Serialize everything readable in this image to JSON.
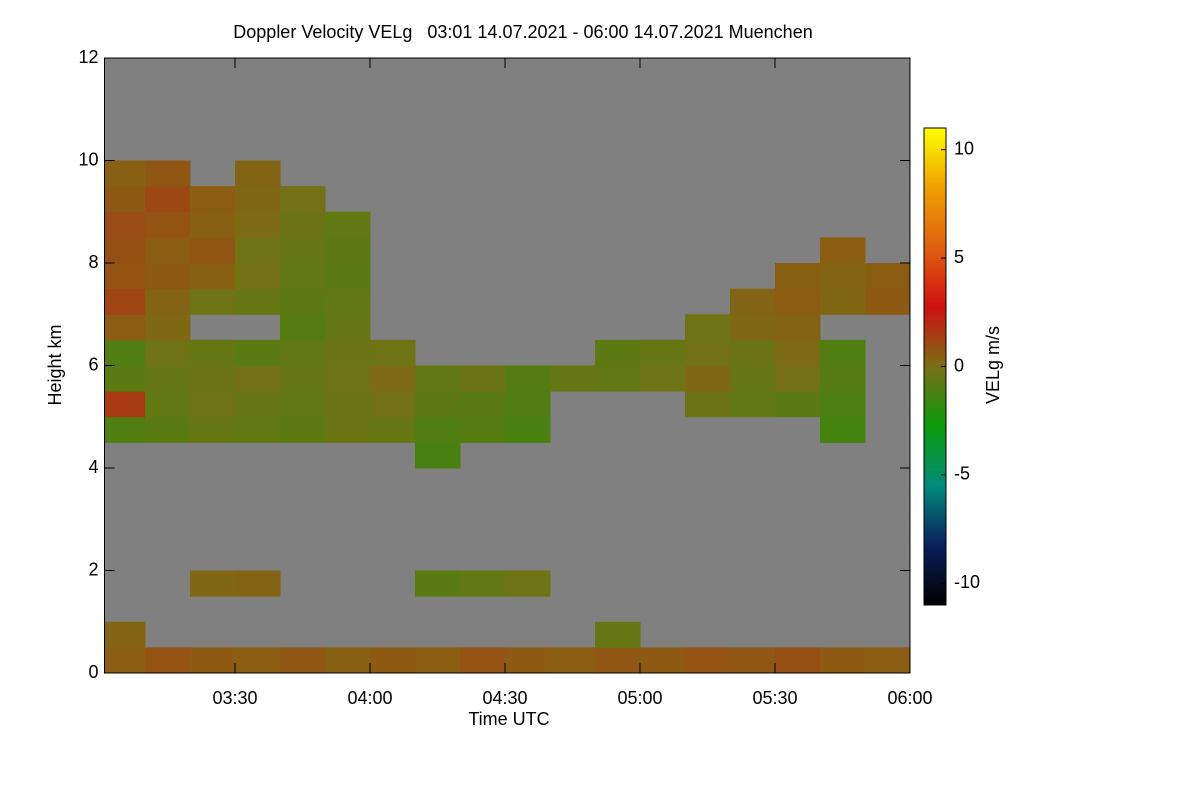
{
  "chart_data": {
    "type": "heatmap",
    "title": "Doppler Velocity VELg   03:01 14.07.2021 - 06:00 14.07.2021 Muenchen",
    "x_label": "Time UTC",
    "y_label": "Height km",
    "colorbar_label": "VELg m/s",
    "xlim": [
      "03:01",
      "06:00"
    ],
    "xticks": [
      "03:30",
      "04:00",
      "04:30",
      "05:00",
      "05:30",
      "06:00"
    ],
    "ylim": [
      0,
      12
    ],
    "yticks": [
      0,
      2,
      4,
      6,
      8,
      10,
      12
    ],
    "zlim": [
      -11,
      11
    ],
    "zticks": [
      -10,
      -5,
      0,
      5,
      10
    ],
    "colorscale": [
      "#000000",
      "#0a1f5c",
      "#008c7a",
      "#0a9a0a",
      "#7a6e14",
      "#d01010",
      "#e06010",
      "#f0a000",
      "#ffff00"
    ],
    "null_color": "#808080",
    "x_edges": [
      "03:01",
      "03:10",
      "03:20",
      "03:30",
      "03:40",
      "03:50",
      "04:00",
      "04:10",
      "04:20",
      "04:30",
      "04:40",
      "04:50",
      "05:00",
      "05:10",
      "05:20",
      "05:30",
      "05:40",
      "05:50",
      "06:00"
    ],
    "y_edges": [
      0,
      0.5,
      1,
      1.5,
      2,
      2.5,
      3,
      3.5,
      4,
      4.5,
      5,
      5.5,
      6,
      6.5,
      7,
      7.5,
      8,
      8.5,
      9,
      9.5,
      10
    ],
    "z": [
      [
        0.5,
        0.8,
        0.6,
        0.5,
        0.7,
        0.4,
        0.6,
        0.5,
        0.8,
        0.6,
        0.5,
        0.7,
        0.6,
        0.8,
        0.7,
        0.9,
        0.6,
        0.5
      ],
      [
        0.3,
        null,
        null,
        null,
        null,
        null,
        null,
        null,
        null,
        null,
        null,
        -0.5,
        null,
        null,
        null,
        null,
        null,
        null
      ],
      [
        null,
        null,
        null,
        null,
        null,
        null,
        null,
        null,
        null,
        null,
        null,
        null,
        null,
        null,
        null,
        null,
        null,
        null
      ],
      [
        null,
        null,
        0.2,
        0.3,
        null,
        null,
        null,
        -0.8,
        -0.6,
        -0.3,
        null,
        null,
        null,
        null,
        null,
        null,
        null,
        null
      ],
      [
        null,
        null,
        null,
        null,
        null,
        null,
        null,
        null,
        null,
        null,
        null,
        null,
        null,
        null,
        null,
        null,
        null,
        null
      ],
      [
        null,
        null,
        null,
        null,
        null,
        null,
        null,
        null,
        null,
        null,
        null,
        null,
        null,
        null,
        null,
        null,
        null,
        null
      ],
      [
        null,
        null,
        null,
        null,
        null,
        null,
        null,
        null,
        null,
        null,
        null,
        null,
        null,
        null,
        null,
        null,
        null,
        null
      ],
      [
        null,
        null,
        null,
        null,
        null,
        null,
        null,
        null,
        null,
        null,
        null,
        null,
        null,
        null,
        null,
        null,
        null,
        null
      ],
      [
        null,
        null,
        null,
        null,
        null,
        null,
        null,
        -1.2,
        null,
        null,
        null,
        null,
        null,
        null,
        null,
        null,
        null,
        null
      ],
      [
        -1.0,
        -0.8,
        -0.5,
        -0.6,
        -0.7,
        -0.4,
        -0.5,
        -1.0,
        -0.9,
        -1.2,
        null,
        null,
        null,
        null,
        null,
        null,
        -1.3,
        null
      ],
      [
        1.5,
        -0.6,
        -0.3,
        -0.5,
        -0.6,
        -0.4,
        -0.2,
        -0.7,
        -0.8,
        -1.0,
        null,
        null,
        null,
        -0.4,
        -0.6,
        -0.8,
        -1.1,
        null
      ],
      [
        -0.8,
        -0.5,
        -0.4,
        -0.2,
        -0.5,
        -0.3,
        0.1,
        -0.6,
        -0.4,
        -0.9,
        -0.5,
        -0.6,
        -0.3,
        0.2,
        -0.5,
        -0.2,
        -0.9,
        null
      ],
      [
        -1.0,
        -0.3,
        -0.5,
        -0.8,
        -0.6,
        -0.4,
        -0.3,
        null,
        null,
        null,
        null,
        -0.7,
        -0.5,
        -0.2,
        -0.4,
        0.1,
        -1.0,
        null
      ],
      [
        0.5,
        0.2,
        null,
        null,
        -0.9,
        -0.5,
        null,
        null,
        null,
        null,
        null,
        null,
        null,
        -0.3,
        0.2,
        0.3,
        null,
        null
      ],
      [
        1.2,
        0.3,
        -0.3,
        -0.5,
        -0.7,
        -0.6,
        null,
        null,
        null,
        null,
        null,
        null,
        null,
        null,
        0.3,
        0.5,
        0.2,
        0.6
      ],
      [
        0.8,
        0.6,
        0.4,
        -0.2,
        -0.6,
        -0.8,
        null,
        null,
        null,
        null,
        null,
        null,
        null,
        null,
        null,
        0.4,
        0.3,
        0.5
      ],
      [
        0.9,
        0.5,
        0.7,
        -0.3,
        -0.5,
        -0.7,
        null,
        null,
        null,
        null,
        null,
        null,
        null,
        null,
        null,
        null,
        0.5,
        null
      ],
      [
        1.0,
        0.8,
        0.4,
        0.1,
        -0.4,
        -0.6,
        null,
        null,
        null,
        null,
        null,
        null,
        null,
        null,
        null,
        null,
        null,
        null
      ],
      [
        0.6,
        1.1,
        0.5,
        0.2,
        -0.2,
        null,
        null,
        null,
        null,
        null,
        null,
        null,
        null,
        null,
        null,
        null,
        null,
        null
      ],
      [
        0.4,
        0.7,
        null,
        0.3,
        null,
        null,
        null,
        null,
        null,
        null,
        null,
        null,
        null,
        null,
        null,
        null,
        null,
        null
      ]
    ]
  }
}
